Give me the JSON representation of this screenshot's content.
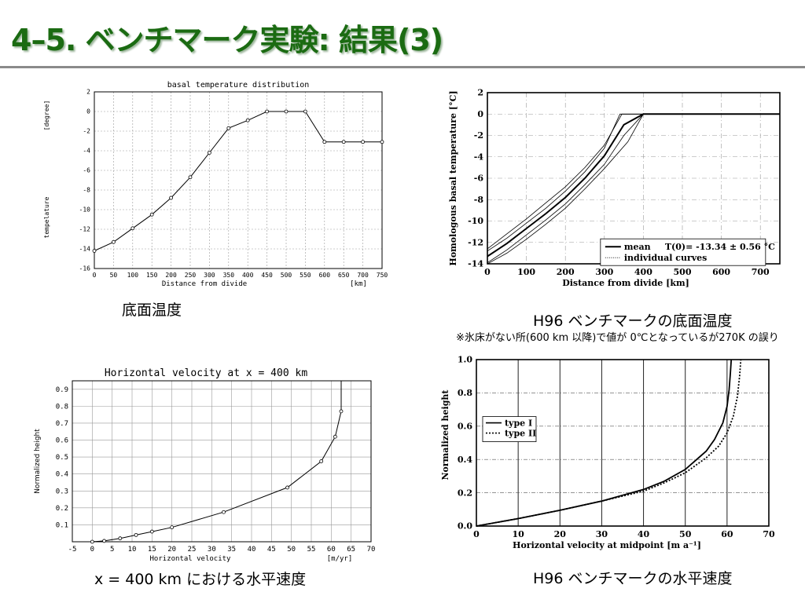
{
  "slide": {
    "title": "4–5. ベンチマーク実験: 結果(3)",
    "caption_tl": "底面温度",
    "caption_tr": "H96 ベンチマークの底面温度",
    "note_tr": "※氷床がない所(600 km 以降)で値が 0℃となっているが270K の誤り",
    "caption_bl": "x = 400 km における水平速度",
    "caption_br": "H96 ベンチマークの水平速度"
  },
  "colors": {
    "title": "#1b6b12",
    "rule": "#8a8a8a",
    "grid": "#999999",
    "line": "#000000"
  },
  "chart_data": [
    {
      "id": "tl",
      "type": "line",
      "title": "basal temperature  distribution",
      "xlabel": "Distance from divide",
      "xunit": "[km]",
      "ylabel": "tempelature",
      "yunit": "[degree]",
      "xlim": [
        0,
        750
      ],
      "ylim": [
        -16,
        2
      ],
      "xticks": [
        0,
        50,
        100,
        150,
        200,
        250,
        300,
        350,
        400,
        450,
        500,
        550,
        600,
        650,
        700,
        750
      ],
      "yticks": [
        -16,
        -14,
        -12,
        -10,
        -8,
        -6,
        -4,
        -2,
        0,
        2
      ],
      "grid": true,
      "series": [
        {
          "x": [
            0,
            50,
            100,
            150,
            200,
            250,
            300,
            350,
            400,
            450,
            500,
            550,
            600,
            650,
            700,
            750
          ],
          "y": [
            -14.2,
            -13.3,
            -11.9,
            -10.5,
            -8.8,
            -6.7,
            -4.2,
            -1.7,
            -0.9,
            0,
            0,
            0,
            -3.1,
            -3.1,
            -3.1,
            -3.1
          ]
        }
      ]
    },
    {
      "id": "tr",
      "type": "line",
      "xlabel": "Distance from divide  [km]",
      "ylabel": "Homologous basal temperature  [°C]",
      "xlim": [
        0,
        750
      ],
      "ylim": [
        -14,
        2
      ],
      "xticks": [
        0,
        100,
        200,
        300,
        400,
        500,
        600,
        700
      ],
      "yticks": [
        -14,
        -12,
        -10,
        -8,
        -6,
        -4,
        -2,
        0,
        2
      ],
      "grid": true,
      "legend": {
        "mean": "mean",
        "annotation": "T(0)= -13.34 ± 0.56 °C",
        "individual": "individual curves"
      },
      "series": [
        {
          "name": "mean",
          "x": [
            0,
            50,
            100,
            150,
            200,
            250,
            300,
            350,
            400,
            750
          ],
          "y": [
            -13.3,
            -12.1,
            -10.7,
            -9.3,
            -7.8,
            -6.0,
            -3.9,
            -1.0,
            0,
            0
          ]
        },
        {
          "name": "individual curves",
          "x": [
            0,
            50,
            100,
            150,
            200,
            250,
            300,
            350,
            400,
            750
          ],
          "y": [
            -13.9,
            -12.7,
            -11.3,
            -9.9,
            -8.4,
            -6.6,
            -4.7,
            -2.0,
            0,
            0
          ]
        },
        {
          "name": "individual curves",
          "x": [
            0,
            50,
            100,
            150,
            200,
            250,
            300,
            340,
            400,
            750
          ],
          "y": [
            -12.8,
            -11.6,
            -10.2,
            -8.8,
            -7.2,
            -5.4,
            -3.2,
            0,
            0,
            0
          ]
        },
        {
          "name": "individual curves",
          "x": [
            0,
            50,
            100,
            150,
            200,
            250,
            300,
            360,
            400,
            750
          ],
          "y": [
            -14.0,
            -13.0,
            -11.7,
            -10.3,
            -8.8,
            -7.0,
            -5.1,
            -2.6,
            0,
            0
          ]
        },
        {
          "name": "individual curves",
          "x": [
            0,
            50,
            100,
            150,
            200,
            250,
            300,
            345,
            400,
            750
          ],
          "y": [
            -12.6,
            -11.2,
            -9.8,
            -8.3,
            -6.8,
            -5.0,
            -2.9,
            0,
            0,
            0
          ]
        }
      ]
    },
    {
      "id": "bl",
      "type": "line",
      "title": "Horizontal velocity  at x = 400 km",
      "xlabel": "Horizontal  velocity",
      "xunit": "[m/yr]",
      "ylabel": "Normalized height",
      "xlim": [
        -5,
        70
      ],
      "ylim": [
        0,
        0.95
      ],
      "xticks": [
        -5,
        0,
        5,
        10,
        15,
        20,
        25,
        30,
        35,
        40,
        45,
        50,
        55,
        60,
        65,
        70
      ],
      "yticks": [
        0.1,
        0.2,
        0.3,
        0.4,
        0.5,
        0.6,
        0.7,
        0.8,
        0.9
      ],
      "grid": true,
      "series": [
        {
          "x": [
            0,
            3,
            7,
            11,
            15,
            20,
            33,
            49,
            57.5,
            61,
            62.5,
            62.5
          ],
          "y": [
            0,
            0.005,
            0.02,
            0.04,
            0.06,
            0.085,
            0.175,
            0.32,
            0.475,
            0.62,
            0.77,
            0.95
          ]
        }
      ]
    },
    {
      "id": "br",
      "type": "line",
      "xlabel": "Horizontal velocity at midpoint  [m a⁻¹]",
      "ylabel": "Normalized height",
      "xlim": [
        0,
        70
      ],
      "ylim": [
        0,
        1.0
      ],
      "xticks": [
        0,
        10,
        20,
        30,
        40,
        50,
        60,
        70
      ],
      "yticks": [
        0.0,
        0.2,
        0.4,
        0.6,
        0.8,
        1.0
      ],
      "grid": true,
      "series": [
        {
          "name": "type I",
          "style": "solid",
          "x": [
            0,
            10,
            20,
            30,
            40,
            45,
            50,
            55,
            57,
            59,
            60,
            60.5,
            60.8,
            61
          ],
          "y": [
            0,
            0.045,
            0.095,
            0.15,
            0.22,
            0.27,
            0.34,
            0.45,
            0.52,
            0.62,
            0.72,
            0.82,
            0.92,
            1.0
          ]
        },
        {
          "name": "type II",
          "style": "dotted",
          "x": [
            0,
            10,
            20,
            30,
            40,
            45,
            50,
            55,
            58,
            60,
            61.5,
            62.5,
            63,
            63.3
          ],
          "y": [
            0,
            0.045,
            0.095,
            0.15,
            0.21,
            0.26,
            0.32,
            0.41,
            0.48,
            0.56,
            0.66,
            0.78,
            0.9,
            1.0
          ]
        }
      ]
    }
  ]
}
